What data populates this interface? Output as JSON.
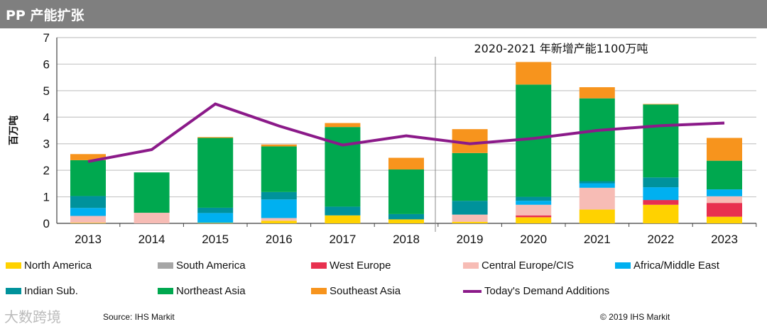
{
  "header": {
    "title": "PP 产能扩张"
  },
  "footer": {
    "source": "Source: IHS Markit",
    "copyright": "© 2019 IHS Markit",
    "watermark": "大数跨境"
  },
  "chart_data": {
    "type": "bar",
    "stacked": true,
    "title": "",
    "annotation": "2020-2021 年新增产能1100万吨",
    "ylabel": "百万吨",
    "xlabel": "",
    "ylim": [
      0,
      7
    ],
    "yticks": [
      0,
      1,
      2,
      3,
      4,
      5,
      6,
      7
    ],
    "categories": [
      "2013",
      "2014",
      "2015",
      "2016",
      "2017",
      "2018",
      "2019",
      "2020",
      "2021",
      "2022",
      "2023"
    ],
    "series": [
      {
        "name": "North America",
        "color": "#ffd200",
        "values": [
          0.02,
          0,
          0.02,
          0.1,
          0.3,
          0.15,
          0.06,
          0.23,
          0.52,
          0.7,
          0.25
        ]
      },
      {
        "name": "South America",
        "color": "#a6a6a6",
        "values": [
          0,
          0,
          0,
          0,
          0,
          0,
          0,
          0,
          0,
          0,
          0
        ]
      },
      {
        "name": "West Europe",
        "color": "#e8304f",
        "values": [
          0,
          0,
          0,
          0,
          0,
          0,
          0,
          0.07,
          0,
          0.18,
          0.52
        ]
      },
      {
        "name": "Central Europe/CIS",
        "color": "#f7bcb5",
        "values": [
          0.26,
          0.4,
          0,
          0.1,
          0,
          0,
          0.27,
          0.4,
          0.82,
          0,
          0.25
        ]
      },
      {
        "name": "Africa/Middle East",
        "color": "#00b0f0",
        "values": [
          0.3,
          0,
          0.37,
          0.7,
          0,
          0,
          0,
          0.15,
          0.17,
          0.48,
          0.26
        ]
      },
      {
        "name": "Indian Sub.",
        "color": "#00929b",
        "values": [
          0.45,
          0,
          0.2,
          0.28,
          0.33,
          0.2,
          0.52,
          0.15,
          0.08,
          0.37,
          0
        ]
      },
      {
        "name": "Northeast Asia",
        "color": "#00a84f",
        "values": [
          1.35,
          1.52,
          2.63,
          1.72,
          3.0,
          1.68,
          1.8,
          4.23,
          3.12,
          2.75,
          1.08
        ]
      },
      {
        "name": "Southeast Asia",
        "color": "#f7941d",
        "values": [
          0.23,
          0,
          0.03,
          0.07,
          0.15,
          0.44,
          0.9,
          0.85,
          0.42,
          0.02,
          0.86
        ]
      }
    ],
    "line": {
      "name": "Today's Demand Additions",
      "color": "#8b1a89",
      "values": [
        2.33,
        2.78,
        4.5,
        3.67,
        2.95,
        3.3,
        3.0,
        3.2,
        3.5,
        3.68,
        3.78
      ]
    },
    "grid": true,
    "legend": "bottom"
  }
}
